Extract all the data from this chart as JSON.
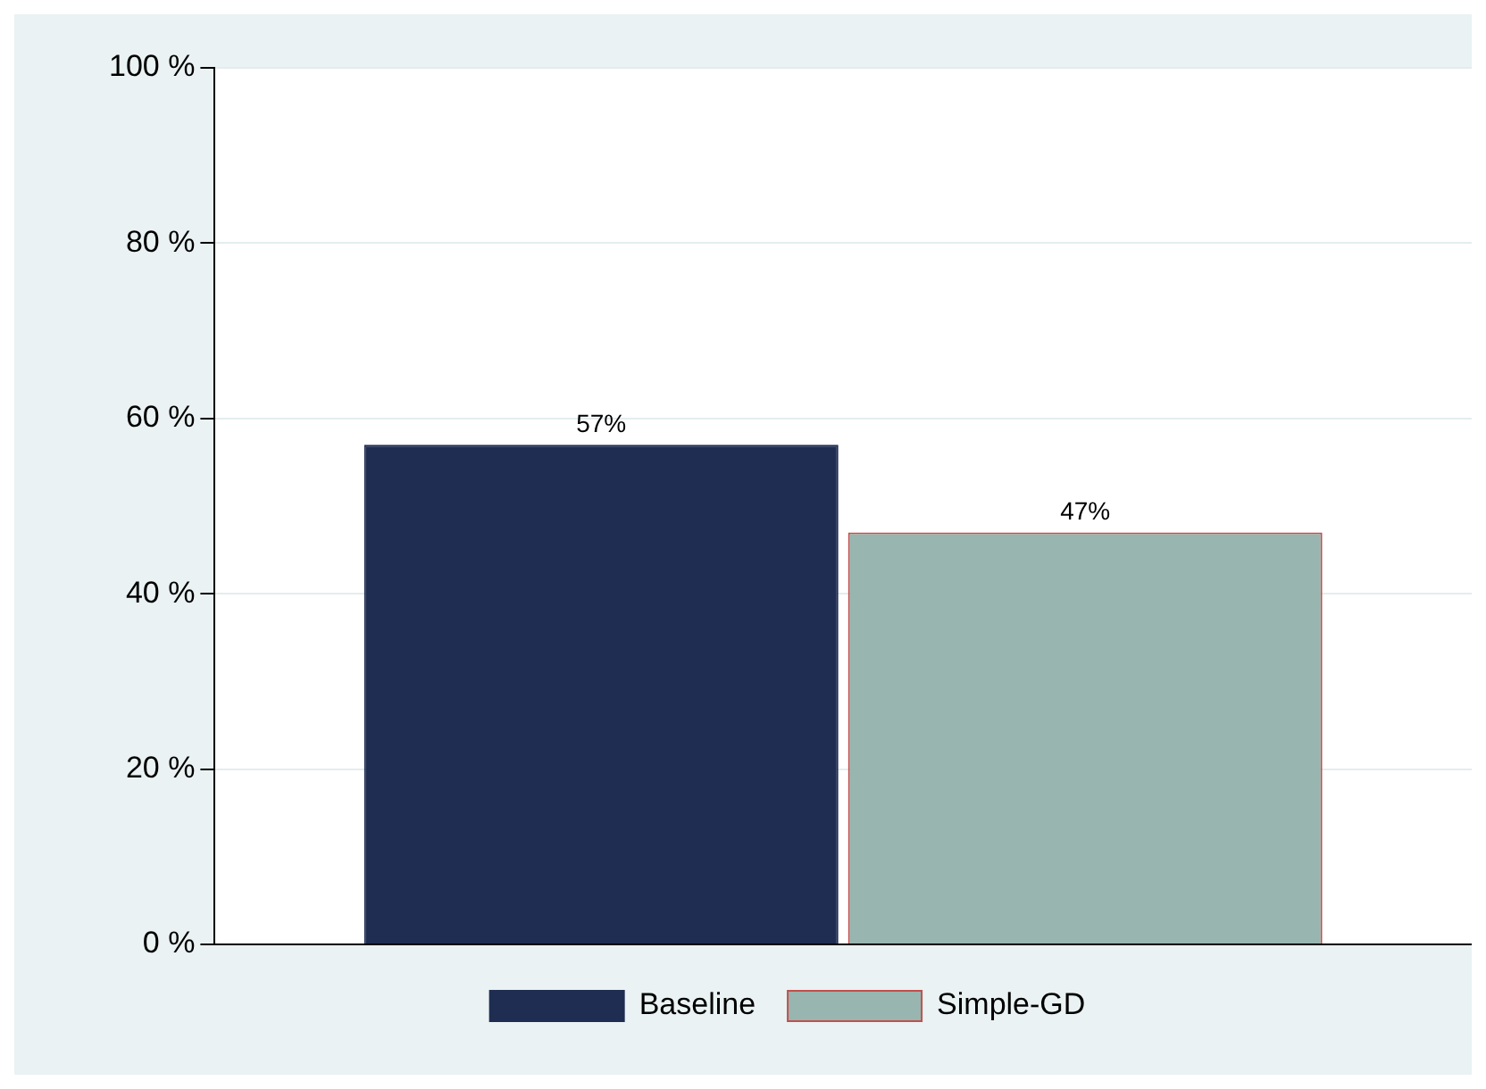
{
  "chart_data": {
    "type": "bar",
    "categories": [
      null
    ],
    "series": [
      {
        "name": "Baseline",
        "color": "#1f2d52",
        "values": [
          57
        ],
        "value_labels": [
          "57%"
        ]
      },
      {
        "name": "Simple-GD",
        "color": "#98b5b0",
        "values": [
          47
        ],
        "value_labels": [
          "47%"
        ]
      }
    ],
    "ylim": [
      0,
      100
    ],
    "yticks": [
      {
        "value": 0,
        "label": "0 %"
      },
      {
        "value": 20,
        "label": "20 %"
      },
      {
        "value": 40,
        "label": "40 %"
      },
      {
        "value": 60,
        "label": "60 %"
      },
      {
        "value": 80,
        "label": "80 %"
      },
      {
        "value": 100,
        "label": "100 %"
      }
    ],
    "grid": "y",
    "legend": "bottom"
  }
}
